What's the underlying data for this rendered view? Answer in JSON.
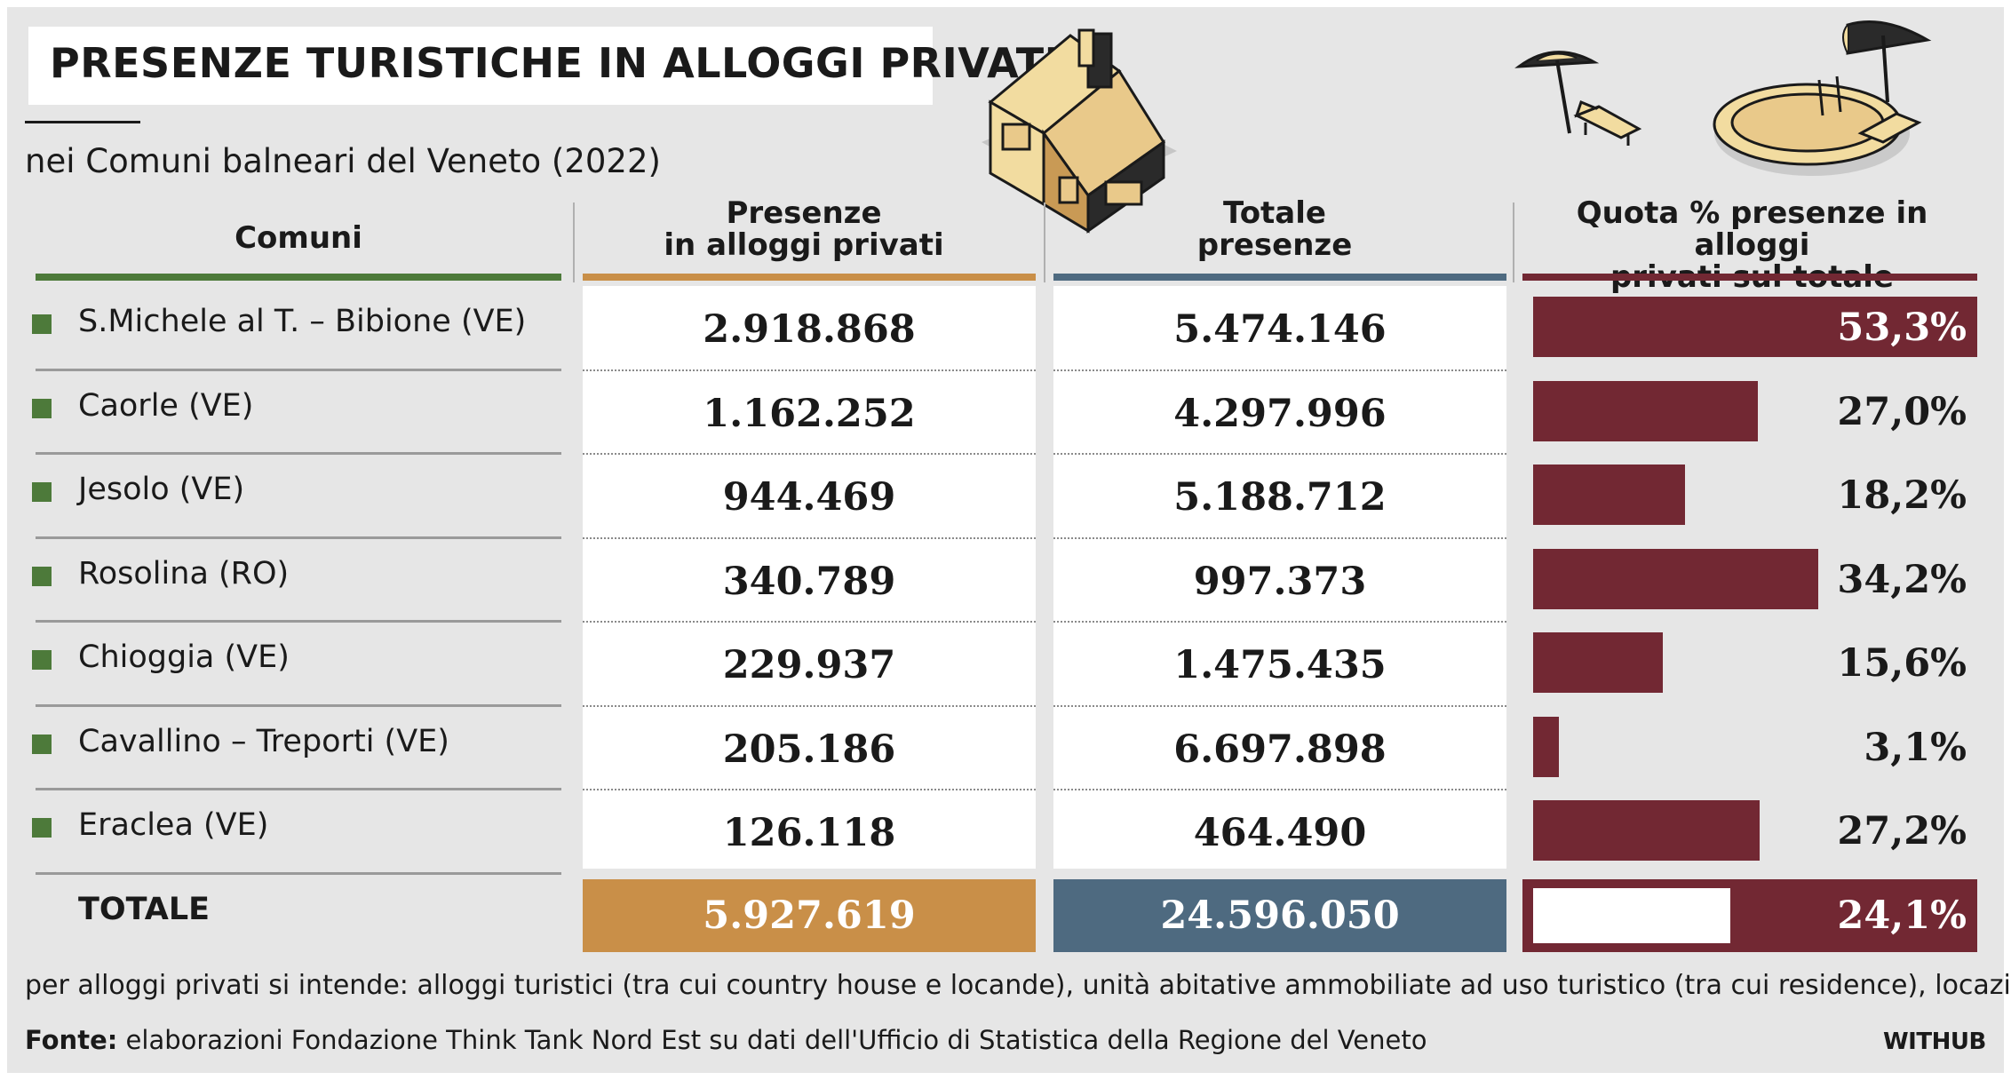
{
  "title": "PRESENZE TURISTICHE IN ALLOGGI PRIVATI",
  "subtitle": "nei Comuni balneari del Veneto (2022)",
  "headers": {
    "comuni": "Comuni",
    "presenze_line1": "Presenze",
    "presenze_line2": "in alloggi privati",
    "totale_line1": "Totale",
    "totale_line2": "presenze",
    "quota_line1": "Quota % presenze in alloggi",
    "quota_line2": "privati sul totale"
  },
  "colors": {
    "comuni_rule": "#4d7a3a",
    "presenze_rule": "#c98f48",
    "totale_rule": "#4e6a80",
    "quota_rule": "#722833",
    "bar": "#722833",
    "background": "#e6e6e6"
  },
  "icons": [
    "house-icon",
    "beach-umbrella-sunbed-icon",
    "pool-umbrella-icon"
  ],
  "chart_data": {
    "type": "table",
    "columns": [
      "Comuni",
      "Presenze in alloggi privati",
      "Totale presenze",
      "Quota % presenze in alloggi privati sul totale"
    ],
    "rows": [
      {
        "comune": "S.Michele al T. – Bibione (VE)",
        "privati": "2.918.868",
        "totale": "5.474.146",
        "quota_label": "53,3%",
        "quota": 53.3
      },
      {
        "comune": "Caorle (VE)",
        "privati": "1.162.252",
        "totale": "4.297.996",
        "quota_label": "27,0%",
        "quota": 27.0
      },
      {
        "comune": "Jesolo (VE)",
        "privati": "944.469",
        "totale": "5.188.712",
        "quota_label": "18,2%",
        "quota": 18.2
      },
      {
        "comune": "Rosolina (RO)",
        "privati": "340.789",
        "totale": "997.373",
        "quota_label": "34,2%",
        "quota": 34.2
      },
      {
        "comune": "Chioggia (VE)",
        "privati": "229.937",
        "totale": "1.475.435",
        "quota_label": "15,6%",
        "quota": 15.6
      },
      {
        "comune": "Cavallino – Treporti (VE)",
        "privati": "205.186",
        "totale": "6.697.898",
        "quota_label": "3,1%",
        "quota": 3.1
      },
      {
        "comune": "Eraclea (VE)",
        "privati": "126.118",
        "totale": "464.490",
        "quota_label": "27,2%",
        "quota": 27.2
      }
    ],
    "total": {
      "label": "TOTALE",
      "privati": "5.927.619",
      "totale": "24.596.050",
      "quota_label": "24,1%",
      "quota": 24.1
    }
  },
  "note": "per alloggi privati si intende: alloggi turistici (tra cui country house e locande), unità abitative ammobiliate ad uso turistico (tra cui residence), locazioni.",
  "source_label": "Fonte:",
  "source_text": " elaborazioni Fondazione Think Tank Nord Est su dati dell'Ufficio di Statistica della Regione del Veneto",
  "brand": "WITHUB"
}
